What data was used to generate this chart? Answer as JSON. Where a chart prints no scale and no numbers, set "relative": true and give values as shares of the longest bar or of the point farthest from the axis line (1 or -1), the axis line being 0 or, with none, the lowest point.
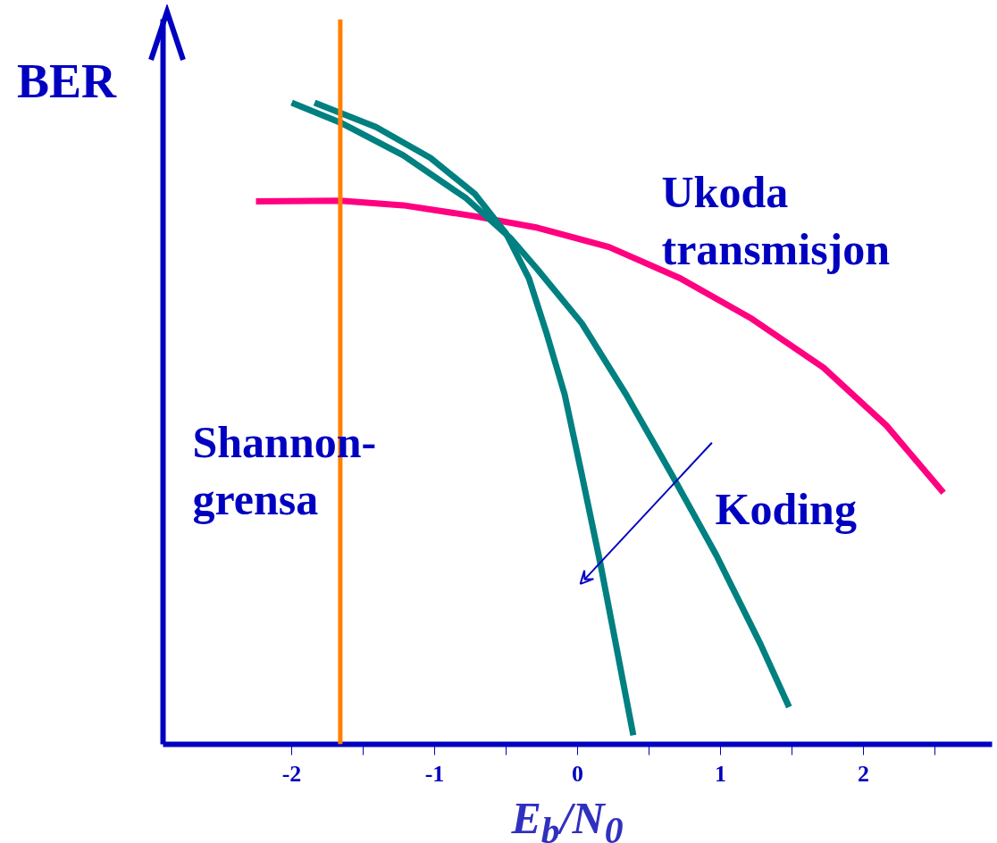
{
  "chart_data": {
    "type": "line",
    "relative": true,
    "ylabel": "BER",
    "xlabel": "E$_{b}$/N$_{0}$",
    "xlim": [
      -2.9,
      2.9
    ],
    "xticks": [
      -2,
      -1,
      0,
      1,
      2,
      {
        "value": -1.5,
        "label": null
      },
      {
        "value": -0.5,
        "label": null
      },
      {
        "value": 0.5,
        "label": null
      },
      {
        "value": 1.5,
        "label": null
      },
      {
        "value": 2.5,
        "label": null
      }
    ],
    "grid": false,
    "legend": false,
    "marker": "none",
    "line_style": "solid",
    "series": [
      {
        "name": "Ukoda transmisjon",
        "color": "#ff0080",
        "x": [
          -2.25,
          -1.66,
          -1.22,
          -0.72,
          -0.28,
          0.22,
          0.72,
          1.22,
          1.72,
          2.16,
          2.56
        ],
        "values": [
          0.846,
          0.847,
          0.84,
          0.823,
          0.805,
          0.775,
          0.726,
          0.663,
          0.587,
          0.497,
          0.392
        ]
      },
      {
        "color": "#008080",
        "x": [
          -2.0,
          -1.66,
          -1.22,
          -0.78,
          -0.47,
          -0.28,
          0.03,
          0.34,
          0.66,
          0.97,
          1.28,
          1.48
        ],
        "values": [
          1.0,
          0.969,
          0.918,
          0.851,
          0.789,
          0.74,
          0.656,
          0.545,
          0.42,
          0.295,
          0.156,
          0.058
        ]
      },
      {
        "color": "#008080",
        "x": [
          -1.84,
          -1.41,
          -1.03,
          -0.72,
          -0.5,
          -0.34,
          -0.22,
          -0.09,
          0.03,
          0.16,
          0.28,
          0.39
        ],
        "values": [
          1.0,
          0.962,
          0.914,
          0.858,
          0.796,
          0.726,
          0.643,
          0.545,
          0.42,
          0.281,
          0.142,
          0.014
        ]
      }
    ],
    "ref_lines": [
      {
        "axis": "x",
        "value": -1.66,
        "label": "Shannon-\ngrensa",
        "color": "#ff8000",
        "line_style": "solid"
      }
    ],
    "annotations": [
      "Koding"
    ]
  }
}
